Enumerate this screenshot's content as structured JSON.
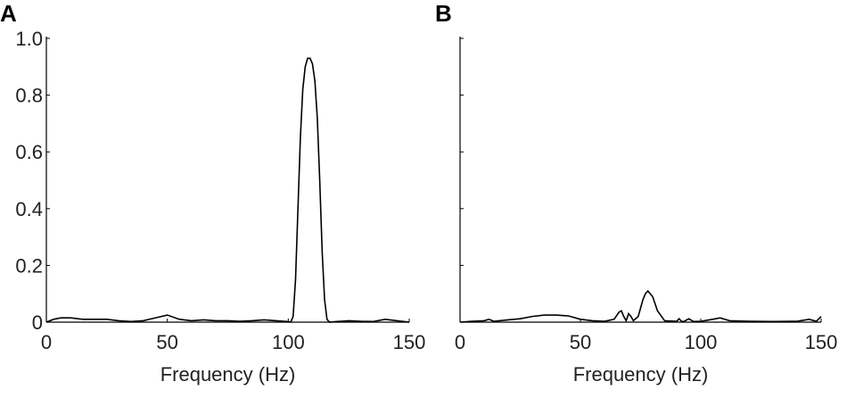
{
  "chart_data": [
    {
      "type": "line",
      "panel": "A",
      "xlabel": "Frequency (Hz)",
      "xlim": [
        0,
        150
      ],
      "xticks": [
        0,
        50,
        100,
        150
      ],
      "ylim": [
        0,
        1.0
      ],
      "yticks": [
        0,
        0.2,
        0.4,
        0.6,
        0.8,
        {
          "value": 1.0,
          "label": "1.0"
        }
      ],
      "ytick_labels": true,
      "color": "#000000",
      "x": [
        0,
        3,
        6,
        10,
        15,
        20,
        25,
        30,
        35,
        40,
        45,
        50,
        55,
        60,
        65,
        70,
        75,
        80,
        85,
        90,
        95,
        100,
        101,
        102,
        103,
        104,
        105,
        106,
        107,
        108,
        109,
        110,
        111,
        112,
        113,
        114,
        115,
        116,
        117,
        120,
        125,
        130,
        135,
        140,
        145,
        150
      ],
      "values": [
        0,
        0.01,
        0.015,
        0.015,
        0.01,
        0.01,
        0.01,
        0.005,
        0.002,
        0.005,
        0.015,
        0.025,
        0.01,
        0.005,
        0.008,
        0.005,
        0.005,
        0.003,
        0.005,
        0.008,
        0.005,
        0.002,
        0,
        0.02,
        0.15,
        0.4,
        0.65,
        0.82,
        0.9,
        0.93,
        0.93,
        0.91,
        0.85,
        0.72,
        0.5,
        0.25,
        0.08,
        0.01,
        0,
        0.002,
        0.005,
        0.003,
        0.002,
        0.01,
        0.005,
        0
      ]
    },
    {
      "type": "line",
      "panel": "B",
      "xlabel": "Frequency (Hz)",
      "xlim": [
        0,
        150
      ],
      "xticks": [
        0,
        50,
        100,
        150
      ],
      "ylim": [
        0,
        1.0
      ],
      "yticks": [
        0,
        0.2,
        0.4,
        0.6,
        0.8,
        1.0
      ],
      "ytick_labels": false,
      "color": "#000000",
      "x": [
        0,
        5,
        10,
        12,
        14,
        20,
        25,
        30,
        35,
        40,
        45,
        50,
        55,
        60,
        64,
        66,
        67,
        68,
        69,
        70,
        71,
        72,
        74,
        76,
        77,
        78,
        80,
        82,
        85,
        90,
        91,
        92,
        93,
        95,
        97,
        100,
        105,
        108,
        112,
        120,
        130,
        140,
        145,
        148,
        150
      ],
      "values": [
        0,
        0.003,
        0.005,
        0.01,
        0.003,
        0.008,
        0.012,
        0.02,
        0.025,
        0.025,
        0.022,
        0.01,
        0.005,
        0.003,
        0.01,
        0.035,
        0.04,
        0.02,
        0.005,
        0.03,
        0.02,
        0.005,
        0.02,
        0.08,
        0.1,
        0.11,
        0.09,
        0.04,
        0.005,
        0.003,
        0.012,
        0.003,
        0.002,
        0.012,
        0.002,
        0.003,
        0.01,
        0.015,
        0.005,
        0.003,
        0.002,
        0.003,
        0.01,
        0.003,
        0.02
      ]
    }
  ]
}
